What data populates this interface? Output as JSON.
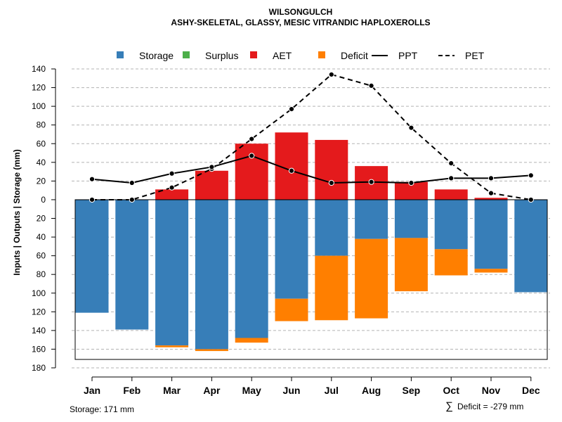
{
  "chart_data": {
    "type": "bar",
    "title": "WILSONGULCH",
    "subtitle": "ASHY-SKELETAL, GLASSY, MESIC VITRANDIC HAPLOXEROLLS",
    "ylabel": "Inputs | Outputs | Storage    (mm)",
    "ylim": [
      -180,
      140
    ],
    "yticks": [
      140,
      120,
      100,
      80,
      60,
      40,
      20,
      0,
      -20,
      -40,
      -60,
      -80,
      -100,
      -120,
      -140,
      -160,
      -180
    ],
    "ytick_labels": [
      "140",
      "120",
      "100",
      "80",
      "60",
      "40",
      "20",
      "0",
      "20",
      "40",
      "60",
      "80",
      "100",
      "120",
      "140",
      "160",
      "180"
    ],
    "categories": [
      "Jan",
      "Feb",
      "Mar",
      "Apr",
      "May",
      "Jun",
      "Jul",
      "Aug",
      "Sep",
      "Oct",
      "Nov",
      "Dec"
    ],
    "grid": true,
    "legend_position": "top",
    "legend": [
      {
        "label": "Storage",
        "kind": "box",
        "color": "#377eb8"
      },
      {
        "label": "Surplus",
        "kind": "box",
        "color": "#4daf4a"
      },
      {
        "label": "AET",
        "kind": "box",
        "color": "#e41a1c"
      },
      {
        "label": "Deficit",
        "kind": "box",
        "color": "#ff7f00"
      },
      {
        "label": "PPT",
        "kind": "solid-line",
        "color": "#000000"
      },
      {
        "label": "PET",
        "kind": "dashed-line",
        "color": "#000000"
      }
    ],
    "series": [
      {
        "name": "Surplus",
        "color": "#4daf4a",
        "values": [
          0,
          0,
          0,
          0,
          0,
          0,
          0,
          0,
          0,
          0,
          0,
          0
        ]
      },
      {
        "name": "AET",
        "color": "#e41a1c",
        "values": [
          0,
          0,
          11,
          31,
          60,
          72,
          64,
          36,
          19,
          11,
          2,
          0
        ]
      },
      {
        "name": "Storage",
        "color": "#377eb8",
        "values": [
          -121,
          -139,
          -156,
          -160,
          -148,
          -106,
          -60,
          -42,
          -41,
          -53,
          -74,
          -99
        ]
      },
      {
        "name": "Deficit",
        "color": "#ff7f00",
        "values": [
          0,
          0,
          -2,
          -2,
          -5,
          -24,
          -69,
          -85,
          -57,
          -28,
          -4,
          0
        ]
      },
      {
        "name": "PPT",
        "kind": "line",
        "color": "#000000",
        "values": [
          22,
          18,
          28,
          35,
          47,
          31,
          18,
          19,
          18,
          23,
          23,
          26
        ]
      },
      {
        "name": "PET",
        "kind": "dashed-line",
        "color": "#000000",
        "values": [
          0,
          0,
          13,
          33,
          65,
          97,
          134,
          122,
          77,
          39,
          7,
          0
        ]
      }
    ],
    "storage_capacity": 171,
    "footer_left": "Storage: 171 mm",
    "footer_right_symbol": "∑",
    "footer_right": "Deficit = -279 mm"
  }
}
